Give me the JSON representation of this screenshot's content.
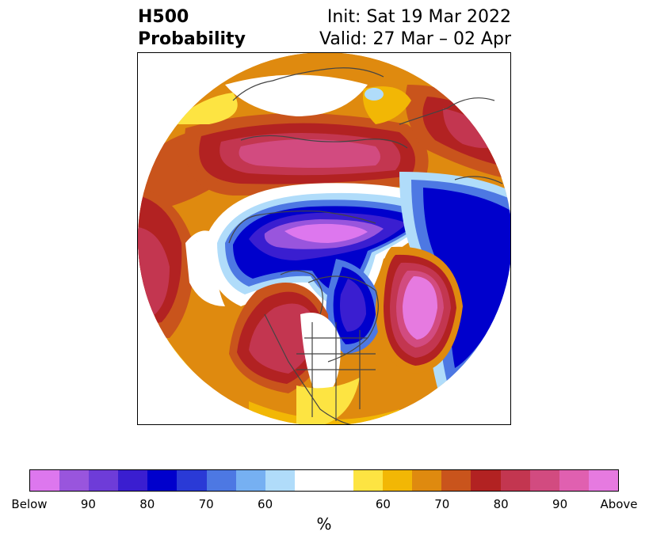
{
  "title": {
    "left_line1": "H500",
    "left_line2": "Probability",
    "right_line1": "Init: Sat 19 Mar 2022",
    "right_line2": "Valid: 27 Mar – 02 Apr"
  },
  "colorbar": {
    "unit": "%",
    "colors": [
      "#dd77ee",
      "#9955dd",
      "#6e3cd8",
      "#3a1ed0",
      "#0000cc",
      "#2a3ad6",
      "#4d78e3",
      "#76b0f2",
      "#b0dcfa",
      "#ffffff",
      "#ffffff",
      "#fde442",
      "#f2b705",
      "#df8a0f",
      "#c9541c",
      "#b22222",
      "#c33650",
      "#d24b80",
      "#e060b0",
      "#e67ae0"
    ],
    "tick_labels": [
      "Below",
      "90",
      "80",
      "70",
      "60",
      "",
      "60",
      "70",
      "80",
      "90",
      "Above"
    ]
  },
  "map": {
    "projection": "north-polar-stereographic",
    "regions_legend": [
      "below-normal",
      "above-normal"
    ]
  }
}
